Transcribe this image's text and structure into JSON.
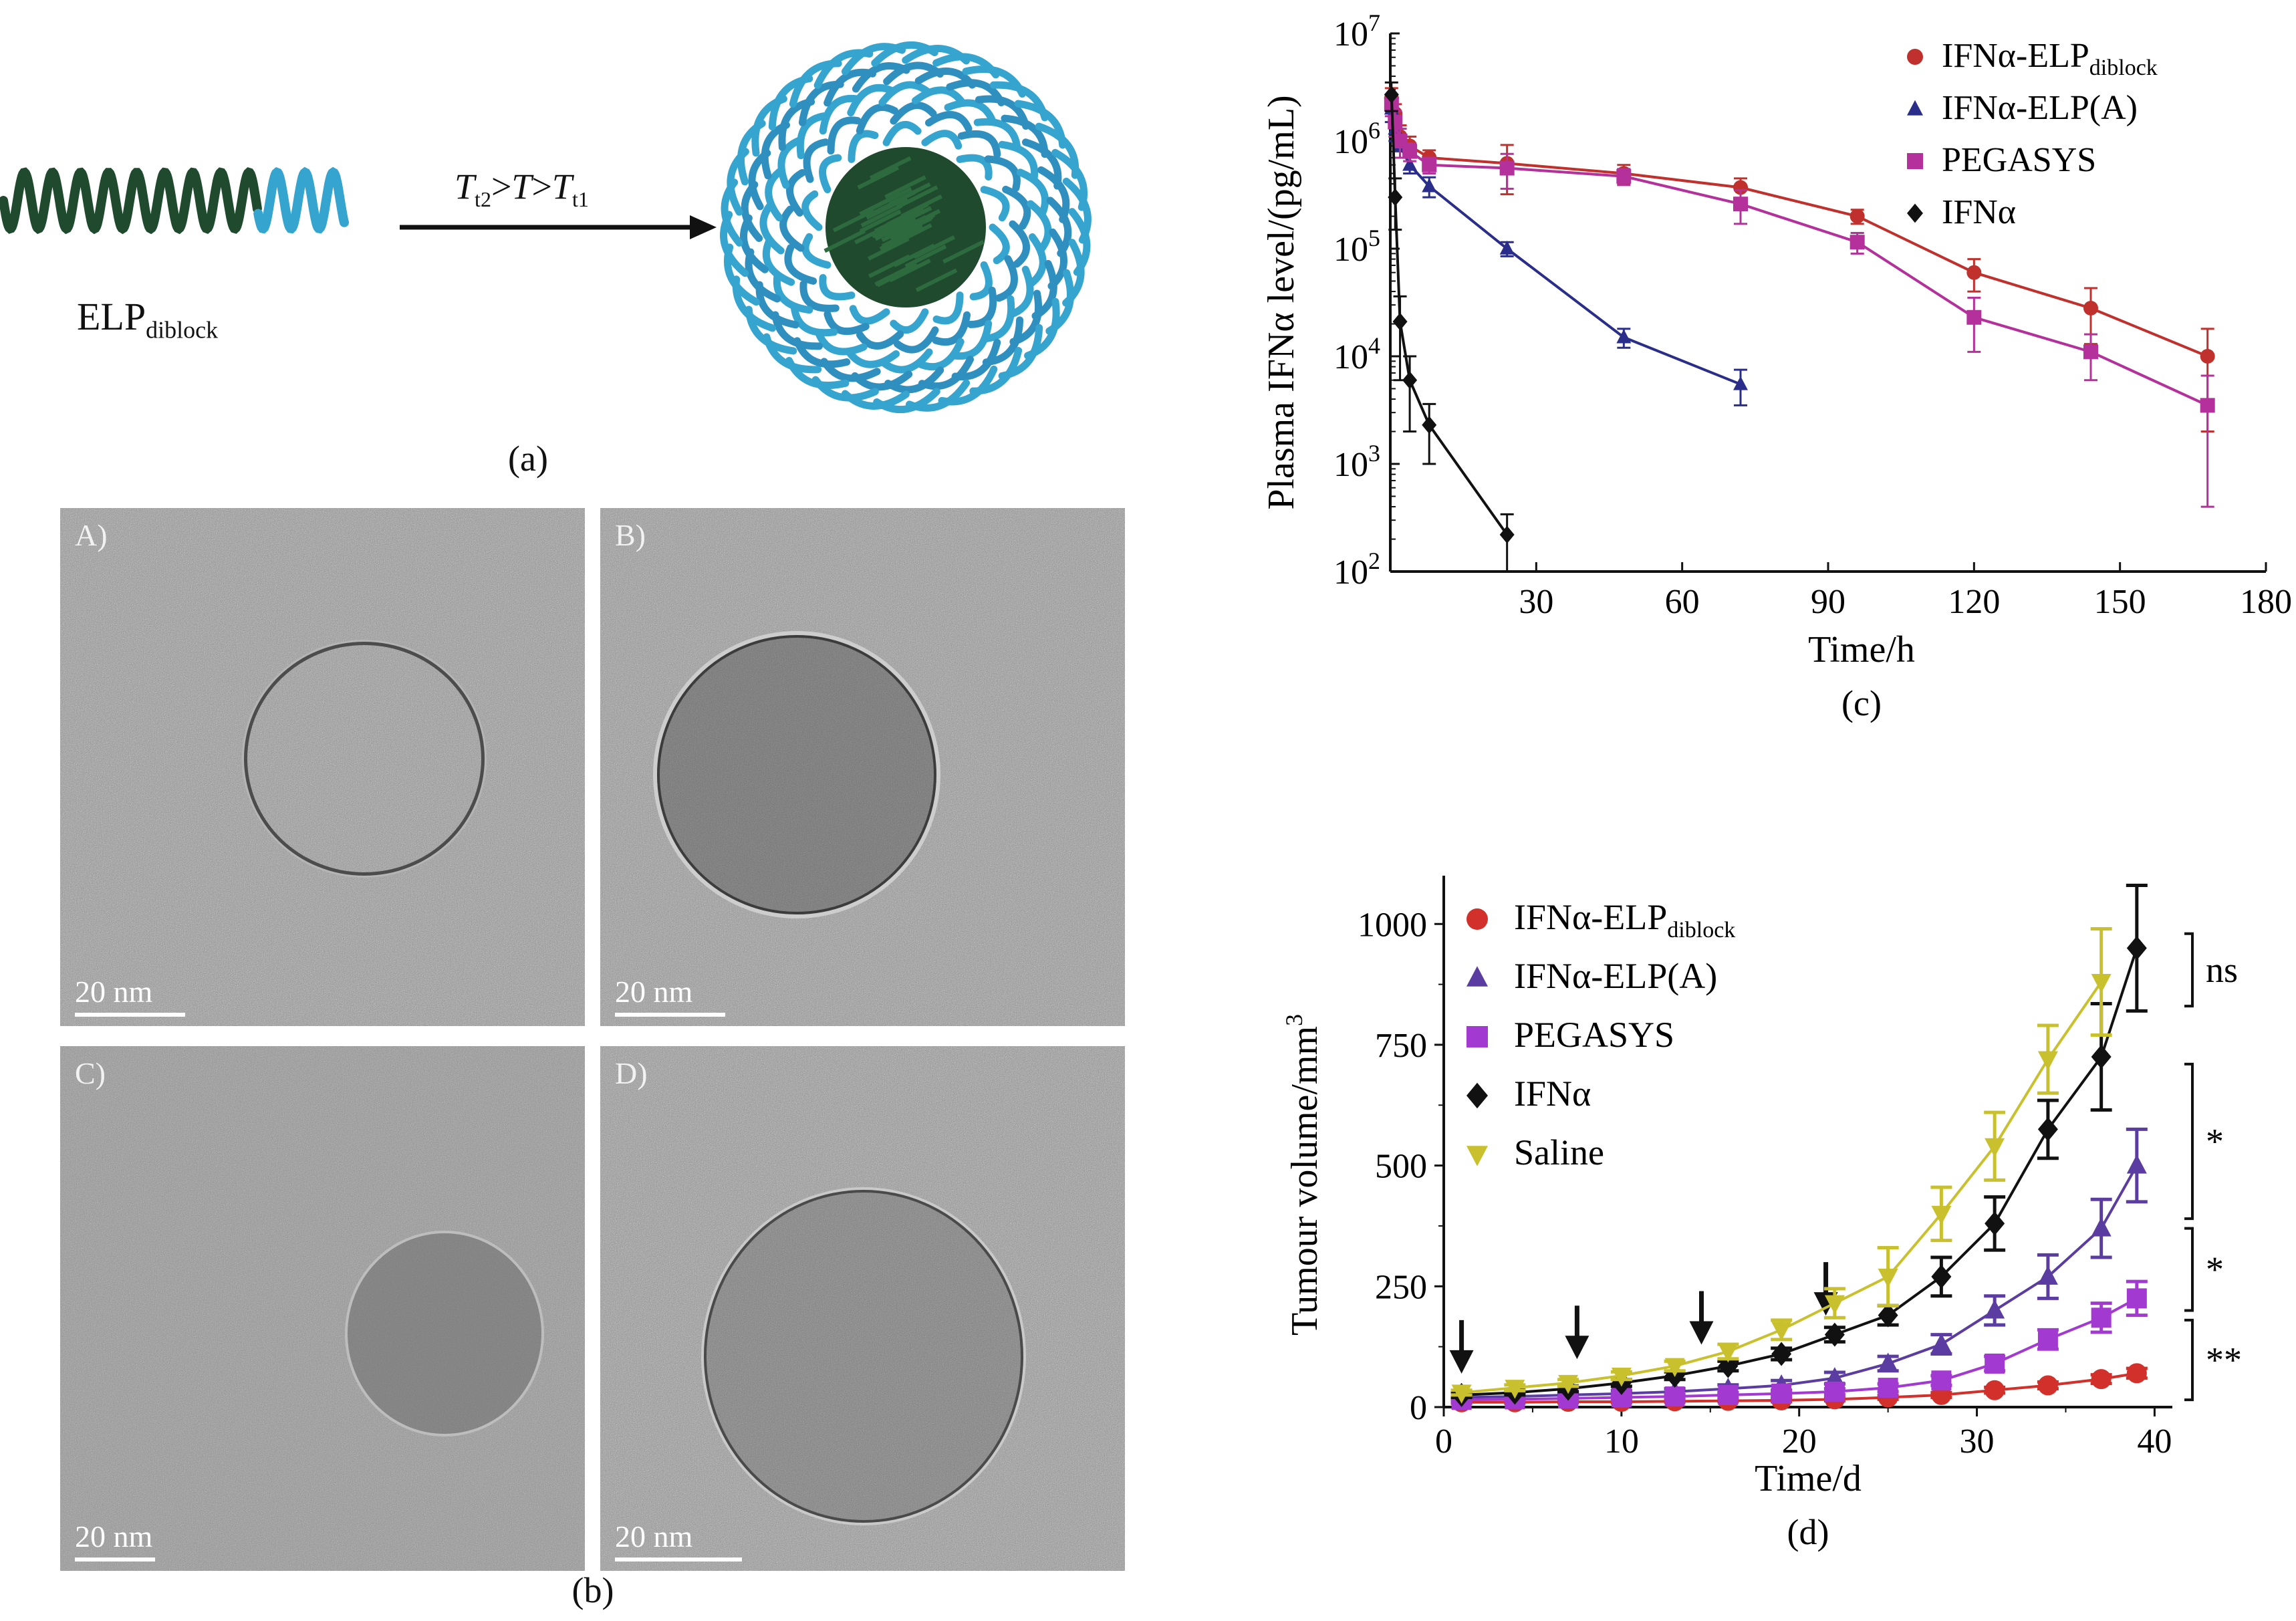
{
  "panel_a": {
    "caption": "(a)",
    "molecule_label_main": "ELP",
    "molecule_label_sub": "diblock",
    "condition": {
      "T1": "T",
      "S1": "t2",
      "G1": ">",
      "T2": "T",
      "G2": ">",
      "T3": "T",
      "S3": "t1"
    },
    "colors": {
      "core": "#1f4a2e",
      "shell": "#35a4cf"
    }
  },
  "panel_b": {
    "caption": "(b)",
    "images": [
      {
        "label": "A)",
        "scale": "20 nm"
      },
      {
        "label": "B)",
        "scale": "20 nm"
      },
      {
        "label": "C)",
        "scale": "20 nm"
      },
      {
        "label": "D)",
        "scale": "20 nm"
      }
    ]
  },
  "chart_data": [
    {
      "id": "c",
      "caption": "(c)",
      "type": "line",
      "yscale": "log",
      "xlabel": "Time/h",
      "ylabel": "Plasma IFNα level/(pg/mL)",
      "xlim": [
        0,
        180
      ],
      "ylim": [
        100,
        10000000
      ],
      "xticks": [
        "30",
        "60",
        "90",
        "120",
        "150",
        "180"
      ],
      "yticks": [
        {
          "base": "10",
          "exp": "2"
        },
        {
          "base": "10",
          "exp": "3"
        },
        {
          "base": "10",
          "exp": "4"
        },
        {
          "base": "10",
          "exp": "5"
        },
        {
          "base": "10",
          "exp": "6"
        },
        {
          "base": "10",
          "exp": "7"
        }
      ],
      "legend_position": "top-right",
      "series": [
        {
          "name": "IFNα-ELP",
          "sub": "diblock",
          "marker": "circle",
          "color": "#c0302c",
          "x": [
            0.25,
            1,
            2,
            4,
            8,
            24,
            48,
            72,
            96,
            120,
            144,
            168
          ],
          "y": [
            2500000,
            1800000,
            1100000,
            900000,
            700000,
            620000,
            500000,
            370000,
            200000,
            60000,
            28000,
            10000
          ],
          "err": [
            600000,
            400000,
            300000,
            200000,
            120000,
            300000,
            100000,
            80000,
            30000,
            20000,
            15000,
            8000
          ]
        },
        {
          "name": "IFNα-ELP(A)",
          "sub": "",
          "marker": "triangle",
          "color": "#2a2e8a",
          "x": [
            0.25,
            1,
            2,
            4,
            8,
            24,
            48,
            72
          ],
          "y": [
            2000000,
            1300000,
            900000,
            600000,
            380000,
            100000,
            15000,
            5500
          ],
          "err": [
            500000,
            300000,
            200000,
            100000,
            80000,
            15000,
            3000,
            2000
          ]
        },
        {
          "name": "PEGASYS",
          "sub": "",
          "marker": "square",
          "color": "#b4309a",
          "x": [
            0.25,
            1,
            2,
            4,
            8,
            24,
            48,
            72,
            96,
            120,
            144,
            168
          ],
          "y": [
            2200000,
            1500000,
            1000000,
            800000,
            600000,
            560000,
            470000,
            260000,
            115000,
            23000,
            11000,
            3500
          ],
          "err": [
            500000,
            400000,
            300000,
            150000,
            100000,
            200000,
            80000,
            90000,
            25000,
            12000,
            5000,
            3100
          ]
        },
        {
          "name": "IFNα",
          "sub": "",
          "marker": "diamond",
          "color": "#111111",
          "x": [
            0.25,
            1,
            2,
            4,
            8,
            24
          ],
          "y": [
            2700000,
            300000,
            21000,
            6000,
            2300,
            220
          ],
          "err": [
            800000,
            150000,
            15000,
            4000,
            1300,
            120
          ]
        }
      ]
    },
    {
      "id": "d",
      "caption": "(d)",
      "type": "line",
      "xlabel": "Time/d",
      "ylabel_main": "Tumour volume/mm",
      "ylabel_sup": "3",
      "xlim": [
        0,
        41
      ],
      "ylim": [
        0,
        1100
      ],
      "xticks": [
        "0",
        "10",
        "20",
        "30",
        "40"
      ],
      "yticks": [
        "0",
        "250",
        "500",
        "750",
        "1000"
      ],
      "legend_position": "top-left",
      "dose_days": [
        1,
        7.5,
        14.5,
        21.5
      ],
      "significance": [
        {
          "label": "ns",
          "from": 830,
          "to": 980
        },
        {
          "label": "*",
          "from": 390,
          "to": 710
        },
        {
          "label": "*",
          "from": 200,
          "to": 370
        },
        {
          "label": "**",
          "from": 15,
          "to": 180
        }
      ],
      "series": [
        {
          "name": "IFNα-ELP",
          "sub": "diblock",
          "marker": "circle",
          "color": "#d2302b",
          "x": [
            1,
            4,
            7,
            10,
            13,
            16,
            19,
            22,
            25,
            28,
            31,
            34,
            37,
            39
          ],
          "y": [
            10,
            10,
            11,
            11,
            12,
            13,
            14,
            16,
            20,
            25,
            35,
            45,
            58,
            70
          ],
          "err": [
            2,
            2,
            2,
            2,
            2,
            2,
            3,
            3,
            4,
            5,
            6,
            7,
            9,
            10
          ]
        },
        {
          "name": "IFNα-ELP(A)",
          "sub": "",
          "marker": "triangle",
          "color": "#5b3ca0",
          "x": [
            1,
            4,
            7,
            10,
            13,
            16,
            19,
            22,
            25,
            28,
            31,
            34,
            37,
            39
          ],
          "y": [
            20,
            22,
            25,
            28,
            32,
            38,
            45,
            60,
            90,
            130,
            200,
            270,
            370,
            500
          ],
          "err": [
            5,
            5,
            5,
            6,
            6,
            8,
            10,
            12,
            15,
            20,
            30,
            45,
            60,
            75
          ]
        },
        {
          "name": "PEGASYS",
          "sub": "",
          "marker": "square",
          "color": "#a23ad2",
          "x": [
            1,
            4,
            7,
            10,
            13,
            16,
            19,
            22,
            25,
            28,
            31,
            34,
            37,
            39
          ],
          "y": [
            15,
            16,
            18,
            20,
            22,
            25,
            28,
            32,
            40,
            55,
            90,
            140,
            185,
            225
          ],
          "err": [
            3,
            3,
            3,
            4,
            4,
            5,
            5,
            6,
            8,
            10,
            15,
            20,
            30,
            35
          ]
        },
        {
          "name": "IFNα",
          "sub": "",
          "marker": "diamond",
          "color": "#111111",
          "x": [
            1,
            4,
            7,
            10,
            13,
            16,
            19,
            22,
            25,
            28,
            31,
            34,
            37,
            39
          ],
          "y": [
            25,
            30,
            38,
            50,
            65,
            85,
            110,
            150,
            190,
            270,
            380,
            575,
            725,
            950
          ],
          "err": [
            5,
            5,
            6,
            7,
            8,
            10,
            12,
            15,
            20,
            40,
            55,
            60,
            110,
            130
          ]
        },
        {
          "name": "Saline",
          "sub": "",
          "marker": "triangle-down",
          "color": "#c8c02c",
          "x": [
            1,
            4,
            7,
            10,
            13,
            16,
            19,
            22,
            25,
            28,
            31,
            34,
            37
          ],
          "y": [
            30,
            40,
            50,
            65,
            85,
            115,
            160,
            215,
            270,
            400,
            540,
            720,
            880
          ],
          "err": [
            5,
            6,
            7,
            8,
            10,
            15,
            20,
            30,
            60,
            55,
            70,
            70,
            110
          ]
        }
      ]
    }
  ]
}
